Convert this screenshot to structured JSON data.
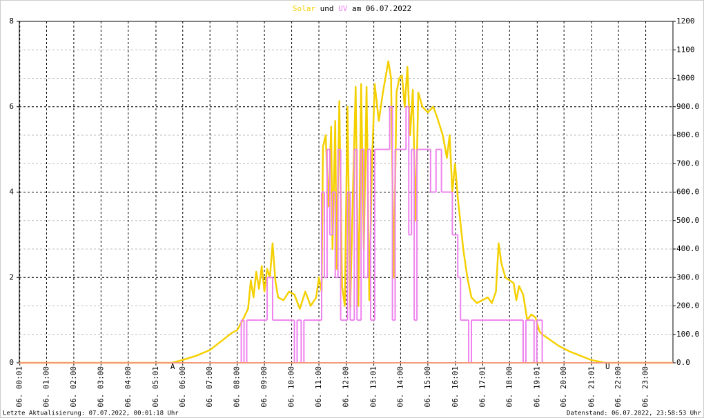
{
  "chart_data": {
    "type": "line",
    "title": [
      "Solar",
      "und",
      "UV",
      "am 06.07.2022"
    ],
    "footer_left": "Letzte Aktualisierung: 07.07.2022, 00:01:18 Uhr",
    "footer_right": "Datenstand: 06.07.2022, 23:58:53 Uhr",
    "xlim": [
      0,
      24
    ],
    "xticks": [
      {
        "value": 0.0167,
        "label": "06. 00:01"
      },
      {
        "value": 1,
        "label": "06. 01:00"
      },
      {
        "value": 2,
        "label": "06. 02:00"
      },
      {
        "value": 3,
        "label": "06. 03:00"
      },
      {
        "value": 4,
        "label": "06. 04:00"
      },
      {
        "value": 5.0167,
        "label": "06. 05:01"
      },
      {
        "value": 6,
        "label": "06. 06:00"
      },
      {
        "value": 7,
        "label": "06. 07:00"
      },
      {
        "value": 8,
        "label": "06. 08:00"
      },
      {
        "value": 9,
        "label": "06. 09:00"
      },
      {
        "value": 10,
        "label": "06. 10:00"
      },
      {
        "value": 11,
        "label": "06. 11:00"
      },
      {
        "value": 12,
        "label": "06. 12:00"
      },
      {
        "value": 13.0167,
        "label": "06. 13:01"
      },
      {
        "value": 14,
        "label": "06. 14:00"
      },
      {
        "value": 15,
        "label": "06. 15:00"
      },
      {
        "value": 16.0167,
        "label": "06. 16:01"
      },
      {
        "value": 17.0167,
        "label": "06. 17:01"
      },
      {
        "value": 18,
        "label": "06. 18:00"
      },
      {
        "value": 19.0167,
        "label": "06. 19:01"
      },
      {
        "value": 20,
        "label": "06. 20:00"
      },
      {
        "value": 21.0167,
        "label": "06. 21:01"
      },
      {
        "value": 22,
        "label": "06. 22:00"
      },
      {
        "value": 23,
        "label": "06. 23:00"
      }
    ],
    "ylim": [
      0,
      8
    ],
    "yticks": [
      0,
      2,
      4,
      6,
      8
    ],
    "y2lim": [
      0,
      1200
    ],
    "y2ticks": [
      {
        "value": 0,
        "label": "0.0"
      },
      {
        "value": 100,
        "label": "100.0"
      },
      {
        "value": 200,
        "label": "200.0"
      },
      {
        "value": 300,
        "label": "300.0"
      },
      {
        "value": 400,
        "label": "400.0"
      },
      {
        "value": 500,
        "label": "500.0"
      },
      {
        "value": 600,
        "label": "600.0"
      },
      {
        "value": 700,
        "label": "700.0"
      },
      {
        "value": 800,
        "label": "800.0"
      },
      {
        "value": 900,
        "label": "900.0"
      },
      1000,
      1100,
      1200
    ],
    "events": [
      {
        "label": "A",
        "x": 5.63
      },
      {
        "label": "U",
        "x": 21.6
      }
    ],
    "series": [
      {
        "name": "Solar",
        "color": "#f5d000",
        "axis": "y2",
        "x": [
          0,
          5.6,
          6.0,
          6.5,
          7.0,
          7.4,
          7.8,
          8.0,
          8.2,
          8.4,
          8.5,
          8.6,
          8.7,
          8.8,
          8.9,
          9.0,
          9.1,
          9.2,
          9.3,
          9.4,
          9.5,
          9.7,
          9.9,
          10.1,
          10.3,
          10.5,
          10.7,
          10.9,
          11.0,
          11.1,
          11.15,
          11.25,
          11.35,
          11.45,
          11.5,
          11.6,
          11.65,
          11.75,
          11.85,
          11.95,
          12.05,
          12.15,
          12.25,
          12.35,
          12.45,
          12.55,
          12.65,
          12.75,
          12.85,
          12.95,
          13.05,
          13.2,
          13.35,
          13.55,
          13.65,
          13.75,
          13.85,
          13.95,
          14.05,
          14.15,
          14.25,
          14.35,
          14.45,
          14.55,
          14.65,
          14.8,
          15.0,
          15.2,
          15.35,
          15.55,
          15.7,
          15.8,
          15.9,
          16.0,
          16.1,
          16.3,
          16.45,
          16.6,
          16.8,
          17.0,
          17.2,
          17.35,
          17.5,
          17.6,
          17.7,
          17.85,
          18.0,
          18.15,
          18.25,
          18.35,
          18.5,
          18.65,
          18.8,
          18.95,
          19.1,
          19.2,
          19.5,
          19.8,
          20.2,
          20.6,
          21.0,
          21.5,
          24
        ],
        "values": [
          0,
          0,
          10,
          25,
          45,
          75,
          105,
          115,
          150,
          190,
          290,
          230,
          320,
          260,
          340,
          250,
          330,
          300,
          420,
          290,
          230,
          220,
          250,
          240,
          190,
          250,
          200,
          230,
          300,
          250,
          760,
          800,
          550,
          830,
          400,
          850,
          330,
          920,
          270,
          200,
          900,
          190,
          600,
          970,
          200,
          980,
          400,
          970,
          220,
          700,
          980,
          850,
          950,
          1060,
          1000,
          300,
          950,
          1000,
          1010,
          900,
          1040,
          800,
          960,
          500,
          950,
          900,
          880,
          900,
          860,
          800,
          720,
          800,
          600,
          700,
          580,
          400,
          300,
          230,
          210,
          220,
          230,
          210,
          250,
          420,
          350,
          300,
          290,
          280,
          220,
          270,
          240,
          150,
          170,
          160,
          110,
          100,
          80,
          60,
          40,
          25,
          10,
          0,
          0
        ]
      },
      {
        "name": "UV",
        "color": "#ee82ee",
        "axis": "y",
        "step": "post",
        "x": [
          0,
          8.1,
          8.15,
          8.25,
          8.35,
          9.1,
          9.3,
          10.0,
          10.1,
          10.2,
          10.35,
          10.45,
          11.1,
          11.2,
          11.3,
          11.4,
          11.5,
          11.6,
          11.7,
          11.8,
          12.05,
          12.15,
          12.3,
          12.4,
          12.55,
          12.65,
          12.8,
          12.9,
          13.05,
          13.6,
          13.7,
          13.8,
          14.2,
          14.3,
          14.4,
          14.5,
          14.6,
          15.1,
          15.3,
          15.5,
          15.9,
          16.1,
          16.2,
          16.5,
          16.6,
          18.5,
          18.6,
          18.9,
          19.0,
          19.2
        ],
        "values": [
          0,
          0,
          1,
          0,
          1,
          2,
          1,
          1,
          0,
          1,
          0,
          1,
          4,
          2,
          5,
          3,
          4,
          2,
          5,
          1,
          4,
          1,
          5,
          1,
          5,
          2,
          5,
          1,
          5,
          6,
          1,
          5,
          6,
          3,
          5,
          1,
          5,
          4,
          5,
          4,
          3,
          2,
          1,
          0,
          1,
          0,
          1,
          0,
          1,
          0
        ]
      }
    ]
  }
}
